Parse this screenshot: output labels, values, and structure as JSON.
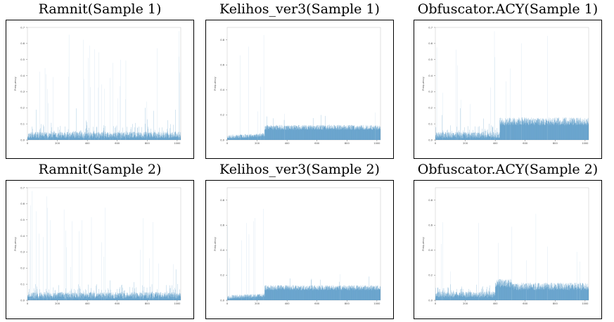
{
  "figure": {
    "panels": [
      {
        "title": "Ramnit(Sample 1)",
        "profile": "ramnit",
        "seed": 11
      },
      {
        "title": "Kelihos_ver3(Sample 1)",
        "profile": "kelihos",
        "seed": 23
      },
      {
        "title": "Obfuscator.ACY(Sample 1)",
        "profile": "obf1",
        "seed": 37
      },
      {
        "title": "Ramnit(Sample 2)",
        "profile": "ramnit",
        "seed": 51
      },
      {
        "title": "Kelihos_ver3(Sample 2)",
        "profile": "kelihos",
        "seed": 67
      },
      {
        "title": "Obfuscator.ACY(Sample 2)",
        "profile": "obf2",
        "seed": 79
      }
    ],
    "bar_color": "#1f77b4"
  },
  "chart_data": [
    {
      "type": "bar",
      "title": "Ramnit(Sample 1)",
      "xlabel": "",
      "ylabel": "Frequency",
      "xlim": [
        0,
        1024
      ],
      "ylim": [
        0,
        0.7
      ],
      "xticks": [
        "0",
        "200",
        "400",
        "600",
        "800",
        "1000"
      ],
      "yticks": [
        "0.0",
        "0.1",
        "0.2",
        "0.3",
        "0.4",
        "0.5",
        "0.6",
        "0.7"
      ],
      "description_values": {
        "baseline_level": 0.03,
        "spike_max": 0.68
      }
    },
    {
      "type": "bar",
      "title": "Kelihos_ver3(Sample 1)",
      "xlabel": "",
      "ylabel": "Frequency",
      "xlim": [
        0,
        1024
      ],
      "ylim": [
        0,
        0.9
      ],
      "xticks": [
        "0",
        "200",
        "400",
        "600",
        "800",
        "1000"
      ],
      "yticks": [
        "0.0",
        "0.2",
        "0.4",
        "0.6",
        "0.8"
      ],
      "description_values": {
        "low_segment_end": 250,
        "low_level": 0.03,
        "high_level": 0.11,
        "spike_max": 0.9
      }
    },
    {
      "type": "bar",
      "title": "Obfuscator.ACY(Sample 1)",
      "xlabel": "",
      "ylabel": "Frequency",
      "xlim": [
        0,
        1024
      ],
      "ylim": [
        0,
        0.7
      ],
      "xticks": [
        "0",
        "200",
        "400",
        "600",
        "800",
        "1000"
      ],
      "yticks": [
        "0.0",
        "0.1",
        "0.2",
        "0.3",
        "0.4",
        "0.5",
        "0.6",
        "0.7"
      ],
      "description_values": {
        "low_segment_end": 430,
        "low_level": 0.04,
        "high_level": 0.12,
        "spike_max": 0.68
      }
    },
    {
      "type": "bar",
      "title": "Ramnit(Sample 2)",
      "xlabel": "",
      "ylabel": "Frequency",
      "xlim": [
        0,
        1024
      ],
      "ylim": [
        0,
        0.7
      ],
      "xticks": [
        "0",
        "200",
        "400",
        "600",
        "800",
        "1000"
      ],
      "yticks": [
        "0.0",
        "0.1",
        "0.2",
        "0.3",
        "0.4",
        "0.5",
        "0.6",
        "0.7"
      ],
      "description_values": {
        "baseline_level": 0.03,
        "spike_max": 0.68
      }
    },
    {
      "type": "bar",
      "title": "Kelihos_ver3(Sample 2)",
      "xlabel": "",
      "ylabel": "Frequency",
      "xlim": [
        0,
        1024
      ],
      "ylim": [
        0,
        0.9
      ],
      "xticks": [
        "0",
        "200",
        "400",
        "600",
        "800",
        "1000"
      ],
      "yticks": [
        "0.0",
        "0.2",
        "0.4",
        "0.6",
        "0.8"
      ],
      "description_values": {
        "low_segment_end": 250,
        "low_level": 0.03,
        "high_level": 0.11,
        "spike_max": 0.9
      }
    },
    {
      "type": "bar",
      "title": "Obfuscator.ACY(Sample 2)",
      "xlabel": "",
      "ylabel": "Frequency",
      "xlim": [
        0,
        1024
      ],
      "ylim": [
        0,
        0.9
      ],
      "xticks": [
        "0",
        "200",
        "400",
        "600",
        "800",
        "1000"
      ],
      "yticks": [
        "0.0",
        "0.2",
        "0.4",
        "0.6",
        "0.8"
      ],
      "description_values": {
        "low_segment_end": 400,
        "low_level": 0.05,
        "high_level": 0.12,
        "spike_max": 0.85
      }
    }
  ]
}
